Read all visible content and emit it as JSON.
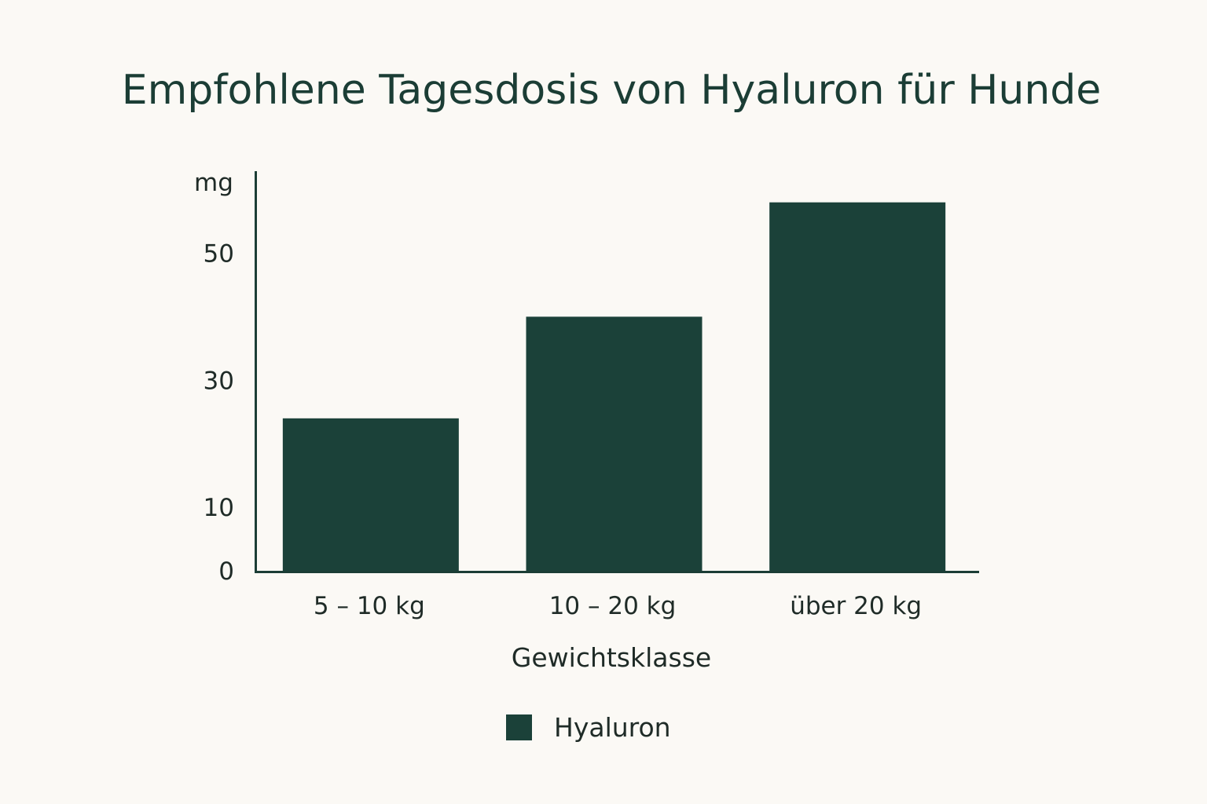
{
  "chart_data": {
    "type": "bar",
    "title": "Empfohlene Tagesdosis von Hyaluron für Hunde",
    "ylabel": "mg",
    "xlabel": "Gewichtsklasse",
    "categories": [
      "5 – 10 kg",
      "10 – 20 kg",
      "über 20 kg"
    ],
    "series": [
      {
        "name": "Hyaluron",
        "values": [
          24,
          40,
          58
        ]
      }
    ],
    "yticks": [
      0,
      10,
      30,
      50
    ],
    "ytick_labels": [
      "0",
      "10",
      "30",
      "50"
    ],
    "ylim": [
      0,
      66
    ],
    "grid": false,
    "legend_position": "bottom-center",
    "bar_color": "#1b4139"
  }
}
